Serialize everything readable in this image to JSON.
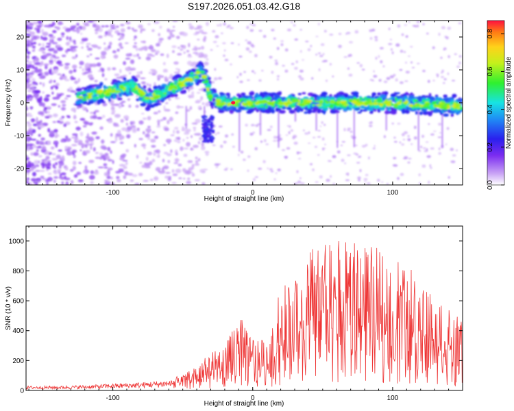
{
  "figure": {
    "title": "S197.2026.051.03.42.G18"
  },
  "chart_data": [
    {
      "type": "heatmap",
      "name": "spectrogram",
      "xlabel": "Height of straight line (km)",
      "ylabel": "Frequency (Hz)",
      "xlim": [
        -162,
        150
      ],
      "ylim": [
        -25,
        25
      ],
      "xticks": [
        -100,
        0,
        100
      ],
      "yticks": [
        -20,
        -10,
        0,
        10,
        20
      ],
      "xtick_labels": [
        "-100",
        "0",
        "100"
      ],
      "ytick_labels": [
        "-20",
        "-10",
        "0",
        "10",
        "20"
      ],
      "colorbar": {
        "label": "Normalized spectral amplitude",
        "range": [
          0,
          0.87
        ],
        "ticks": [
          0.0,
          0.2,
          0.4,
          0.6,
          0.8
        ],
        "tick_labels": [
          "0.0",
          "0.2",
          "0.4",
          "0.6",
          "0.8"
        ]
      },
      "ridge": {
        "description_x": [
          -120,
          -95,
          -85,
          -75,
          -60,
          -50,
          -42,
          -36,
          -30,
          -25,
          0,
          50,
          100,
          150
        ],
        "freq_hz": [
          2,
          4,
          5,
          1,
          4,
          6,
          8,
          10,
          2,
          0,
          0,
          0,
          0,
          -1
        ]
      },
      "peak": {
        "x": -14,
        "freq_hz": 0,
        "amplitude": 0.87
      }
    },
    {
      "type": "line",
      "name": "snr",
      "xlabel": "Height of straight line (km)",
      "ylabel": "SNR (10 * v/v)",
      "xlim": [
        -162,
        150
      ],
      "ylim": [
        0,
        1100
      ],
      "xticks": [
        -100,
        0,
        100
      ],
      "yticks": [
        0,
        200,
        400,
        600,
        800,
        1000
      ],
      "xtick_labels": [
        "-100",
        "0",
        "100"
      ],
      "ytick_labels": [
        "0",
        "200",
        "400",
        "600",
        "800",
        "1000"
      ],
      "series": [
        {
          "name": "SNR",
          "color": "#ee3333",
          "envelope_x": [
            -162,
            -140,
            -120,
            -100,
            -80,
            -60,
            -50,
            -40,
            -30,
            -20,
            -10,
            0,
            10,
            20,
            30,
            40,
            50,
            60,
            70,
            80,
            90,
            100,
            110,
            120,
            130,
            140,
            150
          ],
          "envelope_y": [
            30,
            30,
            35,
            45,
            55,
            70,
            110,
            170,
            250,
            300,
            500,
            380,
            320,
            700,
            740,
            940,
            1000,
            1000,
            1000,
            980,
            950,
            900,
            860,
            760,
            680,
            560,
            460
          ]
        }
      ]
    }
  ]
}
